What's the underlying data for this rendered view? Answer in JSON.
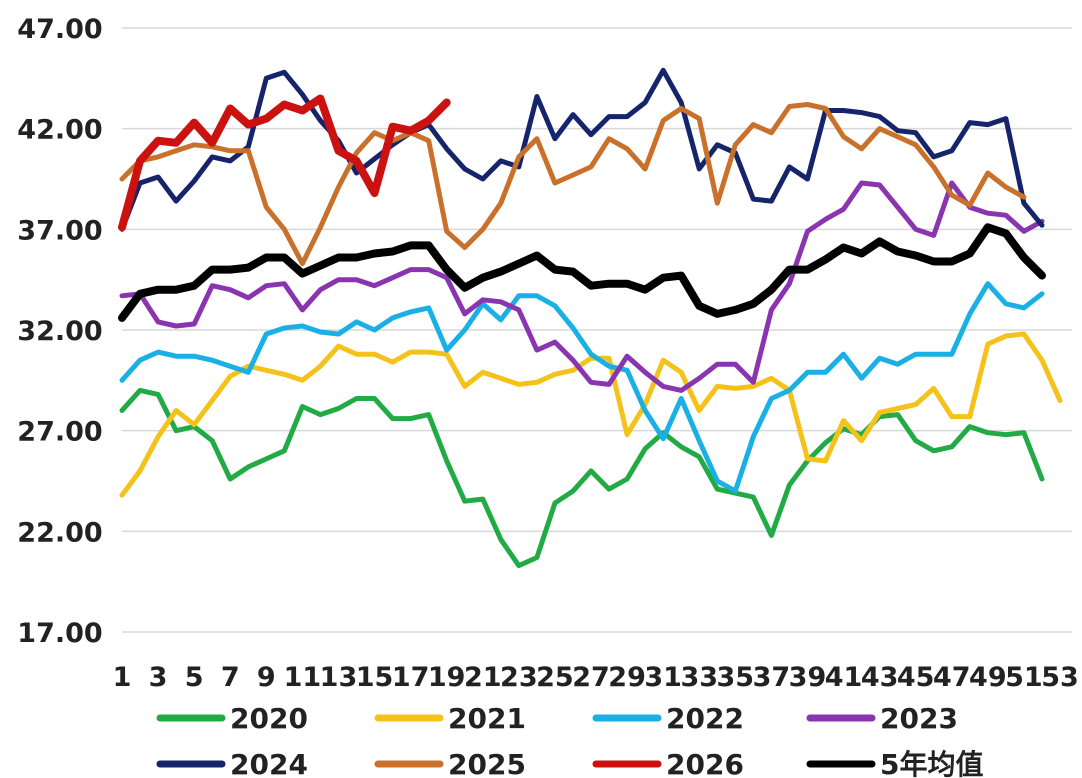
{
  "chart_data": {
    "type": "line",
    "title": "",
    "xlabel": "",
    "ylabel": "",
    "ylim": [
      17,
      47
    ],
    "yticks": [
      17,
      22,
      27,
      32,
      37,
      42,
      47
    ],
    "ytick_labels": [
      "17.00",
      "22.00",
      "27.00",
      "32.00",
      "37.00",
      "42.00",
      "47.00"
    ],
    "x": [
      1,
      2,
      3,
      4,
      5,
      6,
      7,
      8,
      9,
      10,
      11,
      12,
      13,
      14,
      15,
      16,
      17,
      18,
      19,
      20,
      21,
      22,
      23,
      24,
      25,
      26,
      27,
      28,
      29,
      30,
      31,
      32,
      33,
      34,
      35,
      36,
      37,
      38,
      39,
      40,
      41,
      42,
      43,
      44,
      45,
      46,
      47,
      48,
      49,
      50,
      51,
      52,
      53
    ],
    "xticks": [
      1,
      3,
      5,
      7,
      9,
      11,
      13,
      15,
      17,
      19,
      21,
      23,
      25,
      27,
      29,
      31,
      33,
      35,
      37,
      39,
      41,
      43,
      45,
      47,
      49,
      51,
      53
    ],
    "xtick_labels": [
      "1",
      "3",
      "5",
      "7",
      "9",
      "11",
      "13",
      "15",
      "17",
      "19",
      "21",
      "23",
      "25",
      "27",
      "29",
      "31",
      "33",
      "35",
      "37",
      "39",
      "41",
      "43",
      "45",
      "47",
      "49",
      "51",
      "53"
    ],
    "grid": "horizontal",
    "legend_position": "bottom",
    "series": [
      {
        "name": "2020",
        "color": "#22aa44",
        "width": 5,
        "values": [
          28.0,
          29.0,
          28.8,
          27.0,
          27.2,
          26.5,
          24.6,
          25.2,
          25.6,
          26.0,
          28.2,
          27.8,
          28.1,
          28.6,
          28.6,
          27.6,
          27.6,
          27.8,
          25.5,
          23.5,
          23.6,
          21.6,
          20.3,
          20.7,
          23.4,
          24.0,
          25.0,
          24.1,
          24.6,
          26.1,
          26.9,
          26.2,
          25.7,
          24.1,
          23.9,
          23.7,
          21.8,
          24.3,
          25.5,
          26.4,
          27.1,
          26.8,
          27.7,
          27.8,
          26.5,
          26.0,
          26.2,
          27.2,
          26.9,
          26.8,
          26.9,
          24.6,
          null
        ]
      },
      {
        "name": "2021",
        "color": "#f5c21b",
        "width": 5,
        "values": [
          23.8,
          25.0,
          26.7,
          28.0,
          27.3,
          28.5,
          29.7,
          30.2,
          30.0,
          29.8,
          29.5,
          30.2,
          31.2,
          30.8,
          30.8,
          30.4,
          30.9,
          30.9,
          30.8,
          29.2,
          29.9,
          29.6,
          29.3,
          29.4,
          29.8,
          30.0,
          30.6,
          30.6,
          26.8,
          28.3,
          30.5,
          29.9,
          28.0,
          29.2,
          29.1,
          29.2,
          29.6,
          29.0,
          25.6,
          25.5,
          27.5,
          26.5,
          27.9,
          28.1,
          28.3,
          29.1,
          27.7,
          27.7,
          31.3,
          31.7,
          31.8,
          30.5,
          28.5
        ]
      },
      {
        "name": "2022",
        "color": "#1ab0e6",
        "width": 5,
        "values": [
          29.5,
          30.5,
          30.9,
          30.7,
          30.7,
          30.5,
          30.2,
          29.9,
          31.8,
          32.1,
          32.2,
          31.9,
          31.8,
          32.4,
          32.0,
          32.6,
          32.9,
          33.1,
          31.0,
          32.0,
          33.3,
          32.5,
          33.7,
          33.7,
          33.2,
          32.1,
          30.8,
          30.2,
          30.0,
          28.0,
          26.6,
          28.6,
          26.5,
          24.5,
          24.0,
          26.7,
          28.6,
          29.0,
          29.9,
          29.9,
          30.8,
          29.6,
          30.6,
          30.3,
          30.8,
          30.8,
          30.8,
          32.8,
          34.3,
          33.3,
          33.1,
          33.8,
          null
        ]
      },
      {
        "name": "2023",
        "color": "#8a35b0",
        "width": 5,
        "values": [
          33.7,
          33.8,
          32.4,
          32.2,
          32.3,
          34.2,
          34.0,
          33.6,
          34.2,
          34.3,
          33.0,
          34.0,
          34.5,
          34.5,
          34.2,
          34.6,
          35.0,
          35.0,
          34.6,
          32.8,
          33.5,
          33.4,
          33.0,
          31.0,
          31.4,
          30.5,
          29.4,
          29.3,
          30.7,
          29.9,
          29.2,
          29.0,
          29.6,
          30.3,
          30.3,
          29.4,
          33.0,
          34.3,
          36.9,
          37.5,
          38.0,
          39.3,
          39.2,
          38.1,
          37.0,
          36.7,
          39.3,
          38.1,
          37.8,
          37.7,
          36.9,
          37.4,
          null
        ]
      },
      {
        "name": "2024",
        "color": "#16256b",
        "width": 5,
        "values": [
          37.0,
          39.3,
          39.6,
          38.4,
          39.4,
          40.6,
          40.4,
          41.1,
          44.5,
          44.8,
          43.7,
          42.4,
          41.4,
          39.8,
          40.5,
          41.2,
          41.8,
          42.2,
          41.0,
          40.0,
          39.5,
          40.4,
          40.1,
          43.6,
          41.5,
          42.7,
          41.7,
          42.6,
          42.6,
          43.3,
          44.9,
          43.3,
          40.0,
          41.2,
          40.8,
          38.5,
          38.4,
          40.1,
          39.5,
          42.9,
          42.9,
          42.8,
          42.6,
          41.9,
          41.8,
          40.6,
          40.9,
          42.3,
          42.2,
          42.5,
          38.3,
          37.2,
          null
        ]
      },
      {
        "name": "2025",
        "color": "#c9702a",
        "width": 5,
        "values": [
          39.5,
          40.4,
          40.6,
          40.9,
          41.2,
          41.1,
          40.9,
          40.9,
          38.1,
          37.0,
          35.3,
          37.1,
          39.1,
          40.8,
          41.8,
          41.4,
          41.8,
          41.4,
          36.9,
          36.1,
          37.0,
          38.3,
          40.6,
          41.5,
          39.3,
          39.7,
          40.1,
          41.5,
          41.0,
          40.0,
          42.4,
          43.0,
          42.5,
          38.3,
          41.2,
          42.2,
          41.8,
          43.1,
          43.2,
          43.0,
          41.6,
          41.0,
          42.0,
          41.6,
          41.2,
          40.1,
          38.7,
          38.2,
          39.8,
          39.1,
          38.6,
          null,
          null
        ]
      },
      {
        "name": "2026",
        "color": "#cc1111",
        "width": 8,
        "values": [
          37.1,
          40.4,
          41.4,
          41.3,
          42.3,
          41.3,
          43.0,
          42.2,
          42.5,
          43.2,
          42.9,
          43.5,
          40.9,
          40.4,
          38.8,
          42.1,
          41.9,
          42.4,
          43.3,
          null,
          null,
          null,
          null,
          null,
          null,
          null,
          null,
          null,
          null,
          null,
          null,
          null,
          null,
          null,
          null,
          null,
          null,
          null,
          null,
          null,
          null,
          null,
          null,
          null,
          null,
          null,
          null,
          null,
          null,
          null,
          null,
          null,
          null
        ]
      },
      {
        "name": "5年均值",
        "color": "#000000",
        "width": 8,
        "values": [
          32.6,
          33.8,
          34.0,
          34.0,
          34.2,
          35.0,
          35.0,
          35.1,
          35.6,
          35.6,
          34.8,
          35.2,
          35.6,
          35.6,
          35.8,
          35.9,
          36.2,
          36.2,
          35.0,
          34.1,
          34.6,
          34.9,
          35.3,
          35.7,
          35.0,
          34.9,
          34.2,
          34.3,
          34.3,
          34.0,
          34.6,
          34.7,
          33.2,
          32.8,
          33.0,
          33.3,
          34.0,
          35.0,
          35.0,
          35.5,
          36.1,
          35.8,
          36.4,
          35.9,
          35.7,
          35.4,
          35.4,
          35.8,
          37.1,
          36.8,
          35.6,
          34.7,
          null
        ]
      }
    ]
  }
}
